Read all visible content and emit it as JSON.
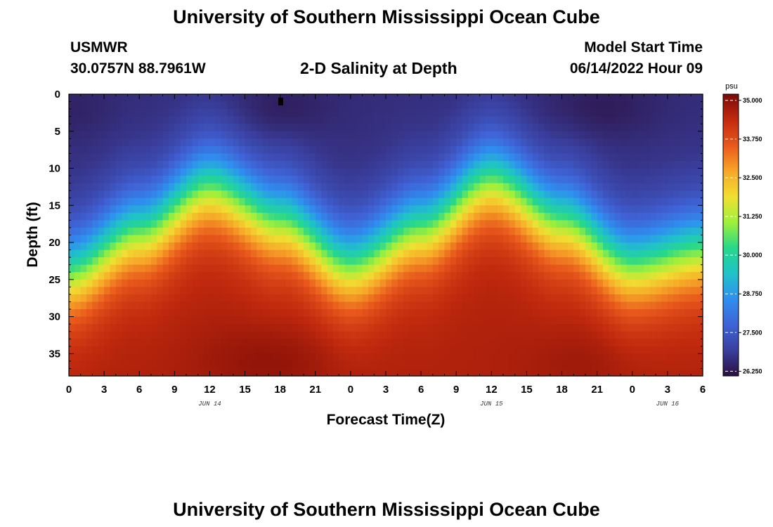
{
  "header": {
    "title": "University of Southern Mississippi Ocean Cube",
    "station": "USMWR",
    "coords": "30.0757N  88.7961W",
    "subtitle": "2-D Salinity at Depth",
    "model_start_label": "Model Start Time",
    "model_start_value": "06/14/2022 Hour 09"
  },
  "footer": {
    "title": "University of Southern Mississippi Ocean Cube"
  },
  "colors": {
    "ramp": [
      "#2b0f3f",
      "#3a3f9e",
      "#3f63d6",
      "#2f8ff0",
      "#1fc3c8",
      "#27d88a",
      "#9ff03a",
      "#f0e032",
      "#f7a628",
      "#e8581c",
      "#c22a0e",
      "#7a0a06"
    ]
  },
  "chart_data": {
    "type": "heatmap",
    "title": "2-D Salinity at Depth",
    "xlabel": "Forecast Time(Z)",
    "ylabel": "Depth (ft)",
    "x_tick_labels": [
      "0",
      "3",
      "6",
      "9",
      "12",
      "15",
      "18",
      "21",
      "0",
      "3",
      "6",
      "9",
      "12",
      "15",
      "18",
      "21",
      "0",
      "3",
      "6"
    ],
    "x_date_labels": [
      {
        "text": "JUN 14",
        "at_tick": 4
      },
      {
        "text": "JUN 15",
        "at_tick": 12
      },
      {
        "text": "JUN 16",
        "at_tick": 17
      }
    ],
    "xlim_hours": [
      0,
      54
    ],
    "y_ticks": [
      0,
      5,
      10,
      15,
      20,
      25,
      30,
      35
    ],
    "ylim_ft": [
      0,
      38
    ],
    "colorbar": {
      "unit": "psu",
      "range": [
        26.1,
        35.2
      ],
      "ticks": [
        "35.000",
        "33.750",
        "32.500",
        "31.250",
        "30.000",
        "28.750",
        "27.500",
        "26.250"
      ]
    },
    "approx_isohaline_depth_ft": {
      "hours": [
        0,
        6,
        12,
        18,
        24,
        30,
        36,
        42,
        48,
        54
      ],
      "salinity_30_depth": [
        24.0,
        18.5,
        12.5,
        17.0,
        23.0,
        18.0,
        11.5,
        17.0,
        23.0,
        21.0
      ]
    },
    "surface_salinity_psu": 26.6,
    "bottom_salinity_psu": 34.6
  }
}
